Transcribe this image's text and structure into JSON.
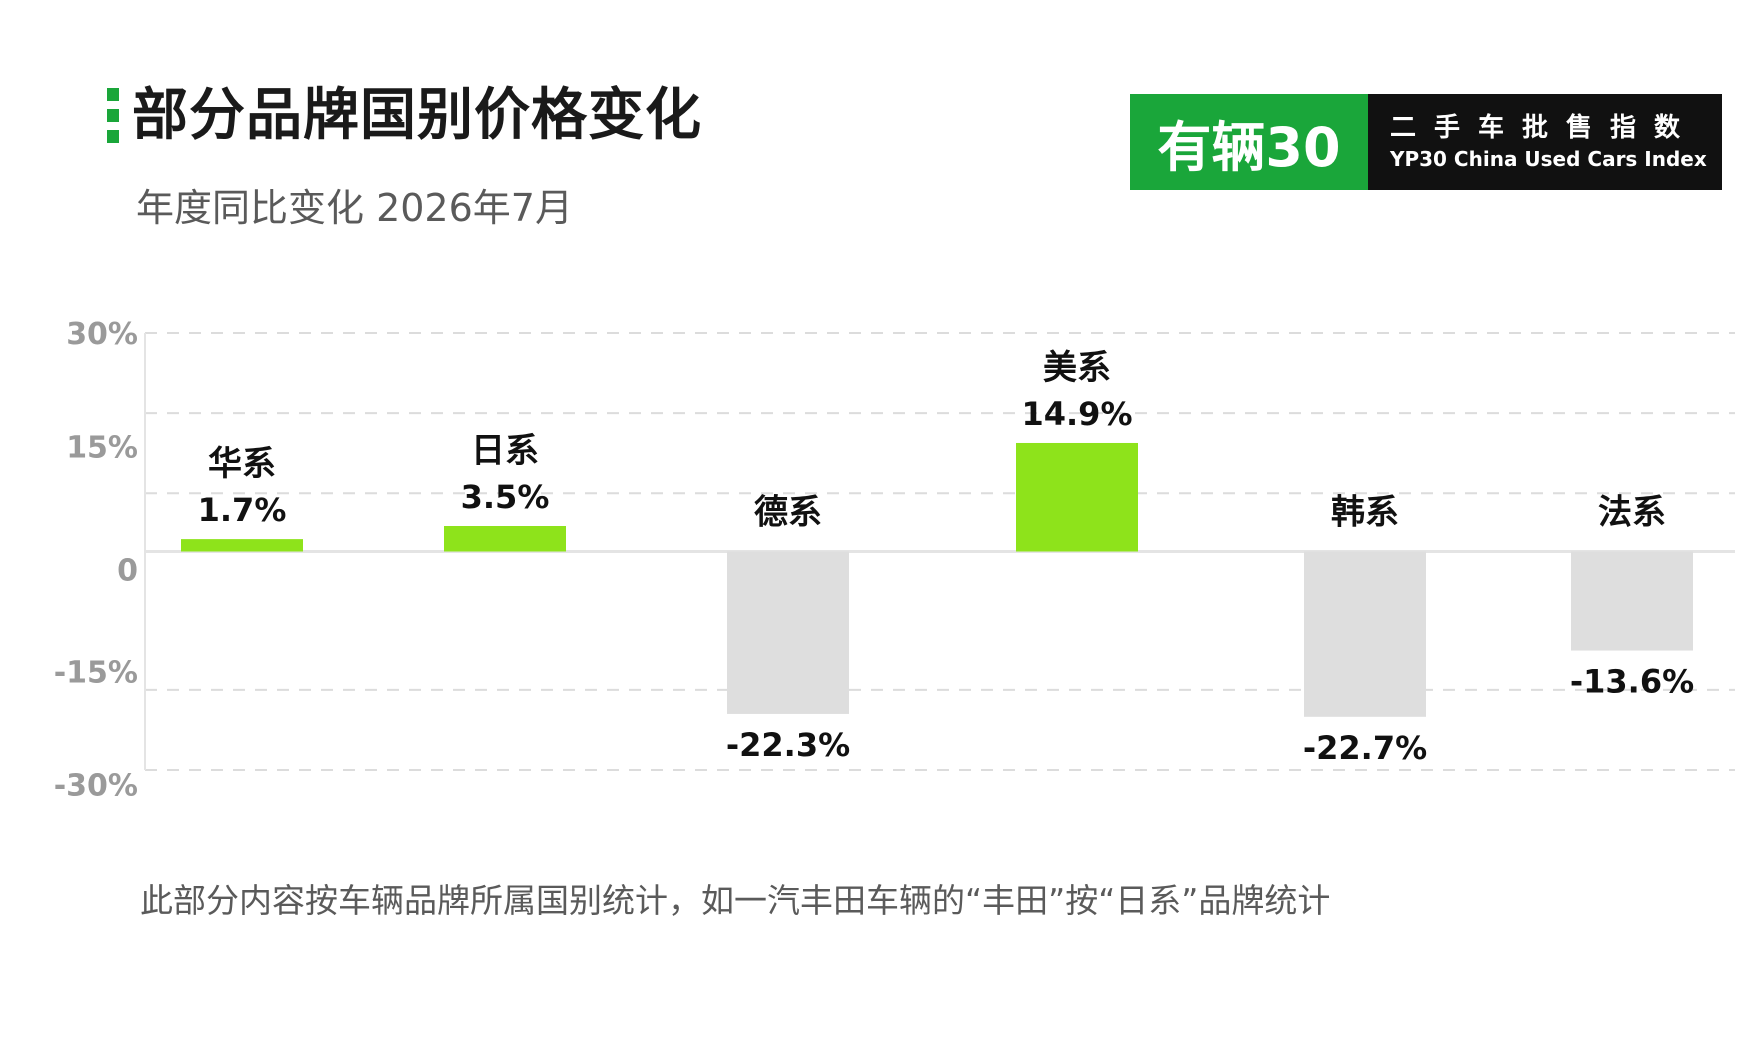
{
  "header": {
    "title": "部分品牌国别价格变化",
    "subtitle": "年度同比变化 2026年7月"
  },
  "brand": {
    "name": "有辆30",
    "tagline_cn": "二手车批售指数",
    "tagline_en": "YP30 China Used Cars Index",
    "colors": {
      "green": "#1aa63a",
      "black": "#111111"
    }
  },
  "footnote": "此部分内容按车辆品牌所属国别统计，如一汽丰田车辆的“丰田”按“日系”品牌统计",
  "chart_data": {
    "type": "bar",
    "categories": [
      "华系",
      "日系",
      "德系",
      "美系",
      "韩系",
      "法系"
    ],
    "values": [
      1.7,
      3.5,
      -22.3,
      14.9,
      -22.7,
      -13.6
    ],
    "value_labels": [
      "1.7%",
      "3.5%",
      "-22.3%",
      "14.9%",
      "-22.7%",
      "-13.6%"
    ],
    "yticks": [
      30,
      15,
      0,
      -15,
      -30
    ],
    "ytick_labels": [
      "30%",
      "15%",
      "0",
      "-15%",
      "-30%"
    ],
    "ylim": [
      -30,
      30
    ],
    "grid": true,
    "legend": "none",
    "colors": {
      "positive": "#8ee31b",
      "negative": "#dedede",
      "grid": "#dcdcdc",
      "tick_label": "#9a9a9a",
      "label": "#111111"
    }
  }
}
